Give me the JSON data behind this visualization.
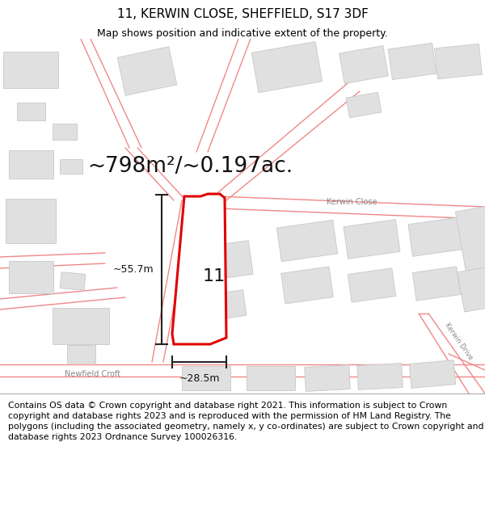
{
  "title": "11, KERWIN CLOSE, SHEFFIELD, S17 3DF",
  "subtitle": "Map shows position and indicative extent of the property.",
  "area_label": "~798m²/~0.197ac.",
  "width_label": "~28.5m",
  "height_label": "~55.7m",
  "property_number": "11",
  "footer": "Contains OS data © Crown copyright and database right 2021. This information is subject to Crown copyright and database rights 2023 and is reproduced with the permission of HM Land Registry. The polygons (including the associated geometry, namely x, y co-ordinates) are subject to Crown copyright and database rights 2023 Ordnance Survey 100026316.",
  "map_bg": "#f8f8f8",
  "building_color": "#e0e0e0",
  "building_outline": "#c8c8c8",
  "property_fill": "#ffffff",
  "property_edge": "#e00000",
  "road_line_color": "#f08888",
  "dim_line_color": "#222222",
  "text_color": "#111111",
  "label_color": "#888888",
  "title_fontsize": 11,
  "subtitle_fontsize": 9,
  "area_fontsize": 19,
  "num_fontsize": 16,
  "dim_fontsize": 9,
  "road_label_fontsize": 7,
  "footer_fontsize": 7.8
}
